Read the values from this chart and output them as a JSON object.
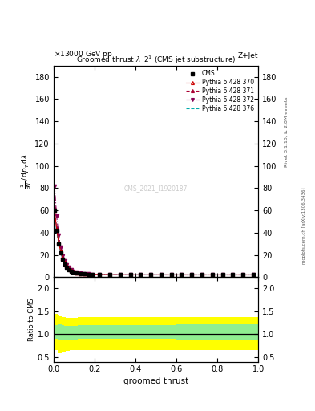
{
  "title": "Groomed thrust $\\lambda$_2$^1$ (CMS jet substructure)",
  "top_left_label": "13000 GeV pp",
  "top_right_label": "Z+Jet",
  "right_label_top": "Rivet 3.1.10, ≥ 2.8M events",
  "right_label_bottom": "mcplots.cern.ch [arXiv:1306.3436]",
  "watermark": "CMS_2021_I1920187",
  "xlabel": "groomed thrust",
  "ylabel_main": "1 / mathrm{d}N  mathrm{d}p_T mathrm{d}lambda",
  "ylabel_ratio": "Ratio to CMS",
  "ylim_main": [
    0,
    190
  ],
  "ylim_ratio": [
    0.4,
    2.25
  ],
  "yticks_main": [
    0,
    20,
    40,
    60,
    80,
    100,
    120,
    140,
    160,
    180
  ],
  "yticks_ratio": [
    0.5,
    1.0,
    1.5,
    2.0
  ],
  "xlim": [
    0,
    1
  ],
  "cms_x": [
    0.005,
    0.015,
    0.025,
    0.035,
    0.045,
    0.055,
    0.065,
    0.075,
    0.085,
    0.095,
    0.11,
    0.13,
    0.15,
    0.17,
    0.19,
    0.225,
    0.275,
    0.325,
    0.375,
    0.425,
    0.475,
    0.525,
    0.575,
    0.625,
    0.675,
    0.725,
    0.775,
    0.825,
    0.875,
    0.925,
    0.975
  ],
  "cms_y": [
    60,
    42,
    30,
    22,
    16,
    12,
    9,
    7,
    5.5,
    4.5,
    3.8,
    3.2,
    2.8,
    2.5,
    2.3,
    2.2,
    2.1,
    2.0,
    2.0,
    2.0,
    2.0,
    2.0,
    2.0,
    2.0,
    2.0,
    2.0,
    2.0,
    2.0,
    2.0,
    2.0,
    2.0
  ],
  "py370_x": [
    0.005,
    0.015,
    0.025,
    0.035,
    0.045,
    0.055,
    0.065,
    0.075,
    0.085,
    0.095,
    0.11,
    0.13,
    0.15,
    0.17,
    0.19,
    0.225,
    0.275,
    0.325,
    0.375,
    0.425,
    0.475,
    0.525,
    0.575,
    0.625,
    0.675,
    0.725,
    0.775,
    0.825,
    0.875,
    0.925,
    0.975
  ],
  "py370_y": [
    60,
    43,
    31,
    23,
    17,
    13,
    10,
    7.5,
    6,
    5,
    4,
    3.4,
    3.0,
    2.6,
    2.4,
    2.3,
    2.15,
    2.05,
    2.02,
    2.01,
    2.01,
    2.0,
    2.0,
    2.0,
    2.0,
    2.0,
    2.0,
    2.0,
    2.0,
    2.0,
    2.0
  ],
  "py371_x": [
    0.005,
    0.015,
    0.025,
    0.035,
    0.045,
    0.055,
    0.065,
    0.075,
    0.085,
    0.095,
    0.11,
    0.13,
    0.15,
    0.17,
    0.19,
    0.225,
    0.275,
    0.325,
    0.375,
    0.425,
    0.475,
    0.525,
    0.575,
    0.625,
    0.675,
    0.725,
    0.775,
    0.825,
    0.875,
    0.925,
    0.975
  ],
  "py371_y": [
    62,
    44,
    32,
    24,
    18,
    14,
    10.5,
    8,
    6.2,
    5.1,
    4.2,
    3.5,
    3.1,
    2.7,
    2.5,
    2.35,
    2.2,
    2.1,
    2.05,
    2.02,
    2.01,
    2.01,
    2.0,
    2.0,
    2.0,
    2.0,
    2.0,
    2.0,
    2.0,
    2.0,
    2.0
  ],
  "py372_x": [
    0.005,
    0.015,
    0.025,
    0.035,
    0.045,
    0.055,
    0.065,
    0.075,
    0.085,
    0.095,
    0.11,
    0.13,
    0.15,
    0.17,
    0.19,
    0.225,
    0.275,
    0.325,
    0.375,
    0.425,
    0.475,
    0.525,
    0.575,
    0.625,
    0.675,
    0.725,
    0.775,
    0.825,
    0.875,
    0.925,
    0.975
  ],
  "py372_y": [
    82,
    55,
    38,
    27,
    19,
    14.5,
    11,
    8.5,
    6.5,
    5.3,
    4.3,
    3.6,
    3.1,
    2.8,
    2.5,
    2.4,
    2.2,
    2.1,
    2.05,
    2.03,
    2.02,
    2.01,
    2.0,
    2.0,
    2.0,
    2.0,
    2.0,
    2.0,
    2.0,
    2.0,
    2.0
  ],
  "py376_x": [
    0.005,
    0.015,
    0.025,
    0.035,
    0.045,
    0.055,
    0.065,
    0.075,
    0.085,
    0.095,
    0.11,
    0.13,
    0.15,
    0.17,
    0.19,
    0.225,
    0.275,
    0.325,
    0.375,
    0.425,
    0.475,
    0.525,
    0.575,
    0.625,
    0.675,
    0.725,
    0.775,
    0.825,
    0.875,
    0.925,
    0.975
  ],
  "py376_y": [
    59,
    41,
    30,
    22,
    16,
    12,
    9,
    7,
    5.5,
    4.5,
    3.8,
    3.2,
    2.8,
    2.5,
    2.3,
    2.2,
    2.1,
    2.0,
    2.0,
    2.0,
    2.0,
    2.0,
    2.0,
    2.0,
    2.0,
    2.0,
    2.0,
    2.0,
    2.0,
    2.0,
    2.0
  ],
  "color_cms": "#000000",
  "color_py370": "#cc0000",
  "color_py371": "#aa0033",
  "color_py372": "#880055",
  "color_py376": "#00aaaa",
  "ratio_x_bins": [
    0.0,
    0.01,
    0.02,
    0.03,
    0.04,
    0.05,
    0.06,
    0.07,
    0.08,
    0.09,
    0.1,
    0.12,
    0.14,
    0.16,
    0.18,
    0.2,
    0.25,
    0.3,
    0.35,
    0.4,
    0.45,
    0.5,
    0.6,
    0.7,
    0.8,
    0.9,
    1.0
  ],
  "ratio_green_lo": [
    1.0,
    0.9,
    0.88,
    0.87,
    0.87,
    0.87,
    0.88,
    0.88,
    0.88,
    0.89,
    0.89,
    0.9,
    0.9,
    0.9,
    0.9,
    0.9,
    0.9,
    0.9,
    0.9,
    0.9,
    0.9,
    0.9,
    0.88,
    0.88,
    0.88,
    0.88
  ],
  "ratio_green_hi": [
    1.0,
    1.2,
    1.22,
    1.22,
    1.2,
    1.18,
    1.18,
    1.18,
    1.18,
    1.18,
    1.18,
    1.2,
    1.2,
    1.2,
    1.2,
    1.2,
    1.2,
    1.2,
    1.2,
    1.2,
    1.2,
    1.2,
    1.22,
    1.22,
    1.22,
    1.22
  ],
  "ratio_yellow_lo": [
    0.6,
    0.65,
    0.58,
    0.58,
    0.6,
    0.62,
    0.63,
    0.64,
    0.65,
    0.65,
    0.65,
    0.65,
    0.65,
    0.65,
    0.65,
    0.65,
    0.65,
    0.65,
    0.65,
    0.65,
    0.65,
    0.65,
    0.65,
    0.65,
    0.65,
    0.65
  ],
  "ratio_yellow_hi": [
    1.45,
    1.45,
    1.42,
    1.4,
    1.38,
    1.37,
    1.36,
    1.36,
    1.36,
    1.36,
    1.36,
    1.37,
    1.37,
    1.37,
    1.37,
    1.37,
    1.37,
    1.37,
    1.37,
    1.37,
    1.37,
    1.37,
    1.38,
    1.38,
    1.38,
    1.38
  ]
}
